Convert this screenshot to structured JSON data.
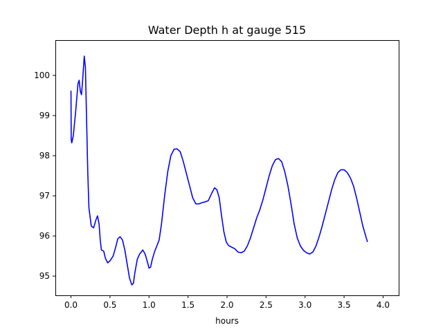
{
  "chart_data": {
    "type": "line",
    "title": "Water Depth h at gauge 515",
    "xlabel": "hours",
    "ylabel": "",
    "xlim": [
      -0.2,
      4.2
    ],
    "ylim": [
      94.52,
      100.88
    ],
    "xticks": [
      0.0,
      0.5,
      1.0,
      1.5,
      2.0,
      2.5,
      3.0,
      3.5,
      4.0
    ],
    "xtick_labels": [
      "0.0",
      "0.5",
      "1.0",
      "1.5",
      "2.0",
      "2.5",
      "3.0",
      "3.5",
      "4.0"
    ],
    "yticks": [
      95,
      96,
      97,
      98,
      99,
      100
    ],
    "ytick_labels": [
      "95",
      "96",
      "97",
      "98",
      "99",
      "100"
    ],
    "grid": false,
    "series": [
      {
        "color": "#0000ff",
        "points": [
          [
            0.0,
            99.62
          ],
          [
            0.003,
            98.4
          ],
          [
            0.01,
            98.32
          ],
          [
            0.03,
            98.5
          ],
          [
            0.06,
            99.1
          ],
          [
            0.09,
            99.8
          ],
          [
            0.105,
            99.88
          ],
          [
            0.12,
            99.6
          ],
          [
            0.135,
            99.52
          ],
          [
            0.15,
            99.9
          ],
          [
            0.17,
            100.48
          ],
          [
            0.185,
            100.2
          ],
          [
            0.2,
            98.9
          ],
          [
            0.215,
            97.6
          ],
          [
            0.23,
            96.7
          ],
          [
            0.26,
            96.25
          ],
          [
            0.29,
            96.2
          ],
          [
            0.32,
            96.4
          ],
          [
            0.34,
            96.5
          ],
          [
            0.36,
            96.3
          ],
          [
            0.375,
            95.9
          ],
          [
            0.39,
            95.65
          ],
          [
            0.42,
            95.62
          ],
          [
            0.44,
            95.45
          ],
          [
            0.47,
            95.33
          ],
          [
            0.5,
            95.38
          ],
          [
            0.54,
            95.5
          ],
          [
            0.57,
            95.7
          ],
          [
            0.6,
            95.93
          ],
          [
            0.63,
            95.98
          ],
          [
            0.66,
            95.9
          ],
          [
            0.69,
            95.65
          ],
          [
            0.72,
            95.3
          ],
          [
            0.75,
            94.95
          ],
          [
            0.78,
            94.78
          ],
          [
            0.8,
            94.82
          ],
          [
            0.82,
            95.1
          ],
          [
            0.85,
            95.42
          ],
          [
            0.88,
            95.55
          ],
          [
            0.9,
            95.6
          ],
          [
            0.92,
            95.65
          ],
          [
            0.95,
            95.55
          ],
          [
            0.98,
            95.35
          ],
          [
            1.0,
            95.2
          ],
          [
            1.02,
            95.22
          ],
          [
            1.04,
            95.4
          ],
          [
            1.07,
            95.6
          ],
          [
            1.1,
            95.75
          ],
          [
            1.13,
            95.9
          ],
          [
            1.16,
            96.3
          ],
          [
            1.2,
            97.0
          ],
          [
            1.24,
            97.6
          ],
          [
            1.28,
            98.0
          ],
          [
            1.32,
            98.16
          ],
          [
            1.36,
            98.17
          ],
          [
            1.4,
            98.1
          ],
          [
            1.44,
            97.85
          ],
          [
            1.48,
            97.55
          ],
          [
            1.52,
            97.25
          ],
          [
            1.56,
            96.95
          ],
          [
            1.6,
            96.8
          ],
          [
            1.64,
            96.8
          ],
          [
            1.68,
            96.83
          ],
          [
            1.72,
            96.85
          ],
          [
            1.76,
            96.88
          ],
          [
            1.8,
            97.05
          ],
          [
            1.84,
            97.2
          ],
          [
            1.87,
            97.15
          ],
          [
            1.9,
            96.95
          ],
          [
            1.93,
            96.5
          ],
          [
            1.96,
            96.1
          ],
          [
            1.99,
            95.85
          ],
          [
            2.02,
            95.76
          ],
          [
            2.06,
            95.72
          ],
          [
            2.1,
            95.68
          ],
          [
            2.14,
            95.6
          ],
          [
            2.18,
            95.58
          ],
          [
            2.22,
            95.62
          ],
          [
            2.26,
            95.75
          ],
          [
            2.3,
            95.95
          ],
          [
            2.34,
            96.2
          ],
          [
            2.38,
            96.45
          ],
          [
            2.42,
            96.65
          ],
          [
            2.46,
            96.9
          ],
          [
            2.5,
            97.2
          ],
          [
            2.54,
            97.5
          ],
          [
            2.58,
            97.75
          ],
          [
            2.62,
            97.9
          ],
          [
            2.66,
            97.93
          ],
          [
            2.7,
            97.85
          ],
          [
            2.74,
            97.6
          ],
          [
            2.78,
            97.25
          ],
          [
            2.82,
            96.8
          ],
          [
            2.86,
            96.3
          ],
          [
            2.9,
            95.95
          ],
          [
            2.94,
            95.75
          ],
          [
            2.98,
            95.64
          ],
          [
            3.02,
            95.58
          ],
          [
            3.06,
            95.55
          ],
          [
            3.1,
            95.6
          ],
          [
            3.14,
            95.75
          ],
          [
            3.18,
            95.98
          ],
          [
            3.22,
            96.25
          ],
          [
            3.26,
            96.55
          ],
          [
            3.3,
            96.85
          ],
          [
            3.34,
            97.15
          ],
          [
            3.38,
            97.4
          ],
          [
            3.42,
            97.58
          ],
          [
            3.46,
            97.65
          ],
          [
            3.5,
            97.65
          ],
          [
            3.54,
            97.58
          ],
          [
            3.58,
            97.45
          ],
          [
            3.62,
            97.25
          ],
          [
            3.66,
            96.95
          ],
          [
            3.7,
            96.6
          ],
          [
            3.74,
            96.25
          ],
          [
            3.78,
            95.98
          ],
          [
            3.8,
            95.85
          ]
        ]
      }
    ]
  }
}
